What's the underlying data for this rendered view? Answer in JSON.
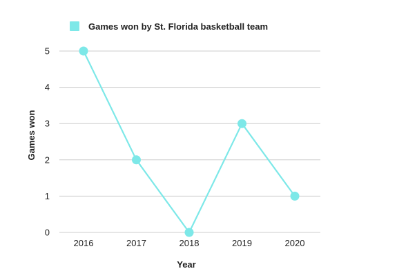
{
  "chart_data": {
    "type": "line",
    "title": "",
    "xlabel": "Year",
    "ylabel": "Games won",
    "categories": [
      "2016",
      "2017",
      "2018",
      "2019",
      "2020"
    ],
    "series": [
      {
        "name": "Games won by St. Florida basketball team",
        "values": [
          5,
          2,
          0,
          3,
          1
        ]
      }
    ],
    "ylim": [
      0,
      5
    ],
    "yticks": [
      "0",
      "1",
      "2",
      "3",
      "4",
      "5"
    ],
    "grid": true,
    "legend": "top-left",
    "colors": {
      "series": "#7de8e8",
      "grid": "#cccccc",
      "text": "#222222"
    }
  }
}
